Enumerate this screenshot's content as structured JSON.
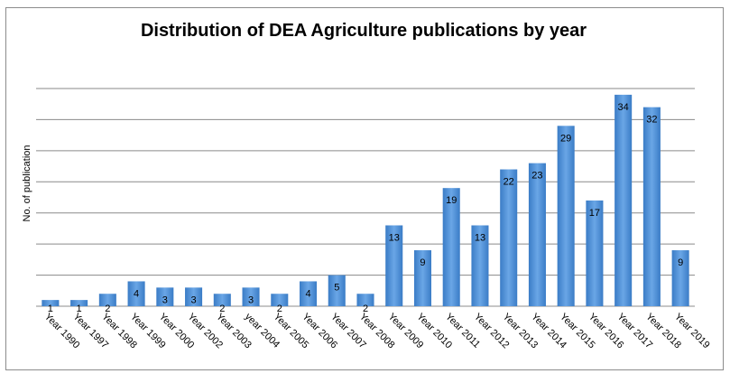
{
  "chart_data": {
    "type": "bar",
    "title": "Distribution of DEA Agriculture publications by year",
    "xlabel": "",
    "ylabel": "No. of publication",
    "ylim": [
      0,
      35
    ],
    "grid": true,
    "legend": "none",
    "bar_color": "#4e8fd4",
    "categories": [
      "Year 1990",
      "Year 1997",
      "Year 1998",
      "Year 1999",
      "Year 2000",
      "Year 2002",
      "Year 2003",
      "year 2004",
      "Year 2005",
      "Year 2006",
      "Year 2007",
      "Year 2008",
      "Year 2009",
      "Year 2010",
      "Year 2011",
      "Year 2012",
      "Year 2013",
      "Year 2014",
      "Year 2015",
      "Year 2016",
      "Year 2017",
      "Year 2018",
      "Year 2019"
    ],
    "values": [
      1,
      1,
      2,
      4,
      3,
      3,
      2,
      3,
      2,
      4,
      5,
      2,
      13,
      9,
      19,
      13,
      22,
      23,
      29,
      17,
      34,
      32,
      9
    ]
  }
}
